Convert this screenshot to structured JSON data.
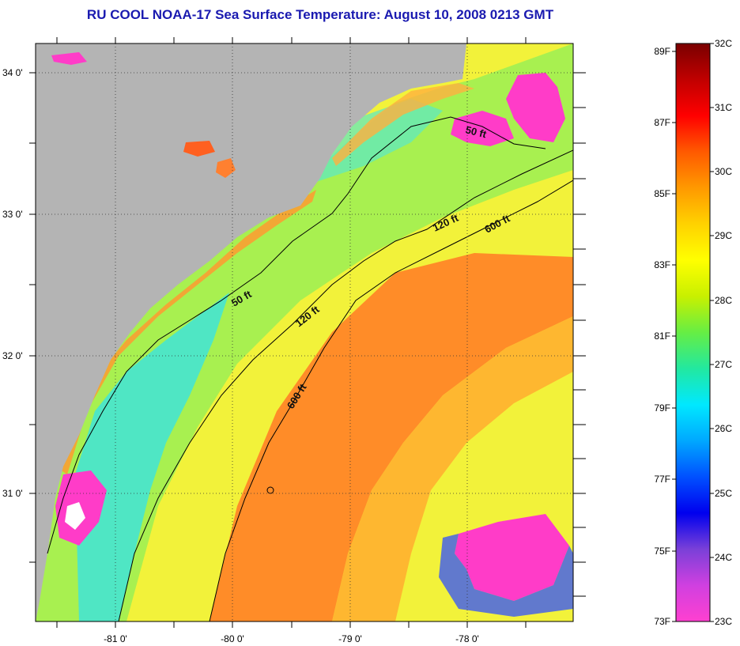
{
  "title": "RU COOL  NOAA-17  Sea Surface Temperature:  August 10, 2008 0213 GMT",
  "axes": {
    "lat_labels": [
      "34 0'",
      "33 0'",
      "32 0'",
      "31 0'"
    ],
    "lon_labels": [
      "-81 0'",
      "-80 0'",
      "-79 0'",
      "-78 0'"
    ]
  },
  "contours": [
    {
      "label": "50 ft"
    },
    {
      "label": "50 ft"
    },
    {
      "label": "120 ft"
    },
    {
      "label": "120 ft"
    },
    {
      "label": "600 ft"
    },
    {
      "label": "600 ft"
    }
  ],
  "colorbar": {
    "fahrenheit": [
      "89F",
      "87F",
      "85F",
      "83F",
      "81F",
      "79F",
      "77F",
      "75F",
      "73F"
    ],
    "celsius": [
      "32C",
      "31C",
      "30C",
      "29C",
      "28C",
      "27C",
      "26C",
      "25C",
      "24C",
      "23C"
    ],
    "colors": [
      "#7a0000",
      "#c00000",
      "#ff0000",
      "#ff5a00",
      "#ff9900",
      "#ffd200",
      "#ffff00",
      "#c8f000",
      "#66ee44",
      "#22e8a0",
      "#00e8ff",
      "#00a8ff",
      "#0050ff",
      "#0000ee",
      "#7a40d8",
      "#d040e0",
      "#ff40d0"
    ]
  },
  "colors": {
    "land": "#b4b4b4",
    "title": "#1a1ab0",
    "cloud": "#ff3cc8",
    "warm": "#ff8c1e",
    "mid": "#f5f532",
    "cool": "#32e6dc"
  }
}
